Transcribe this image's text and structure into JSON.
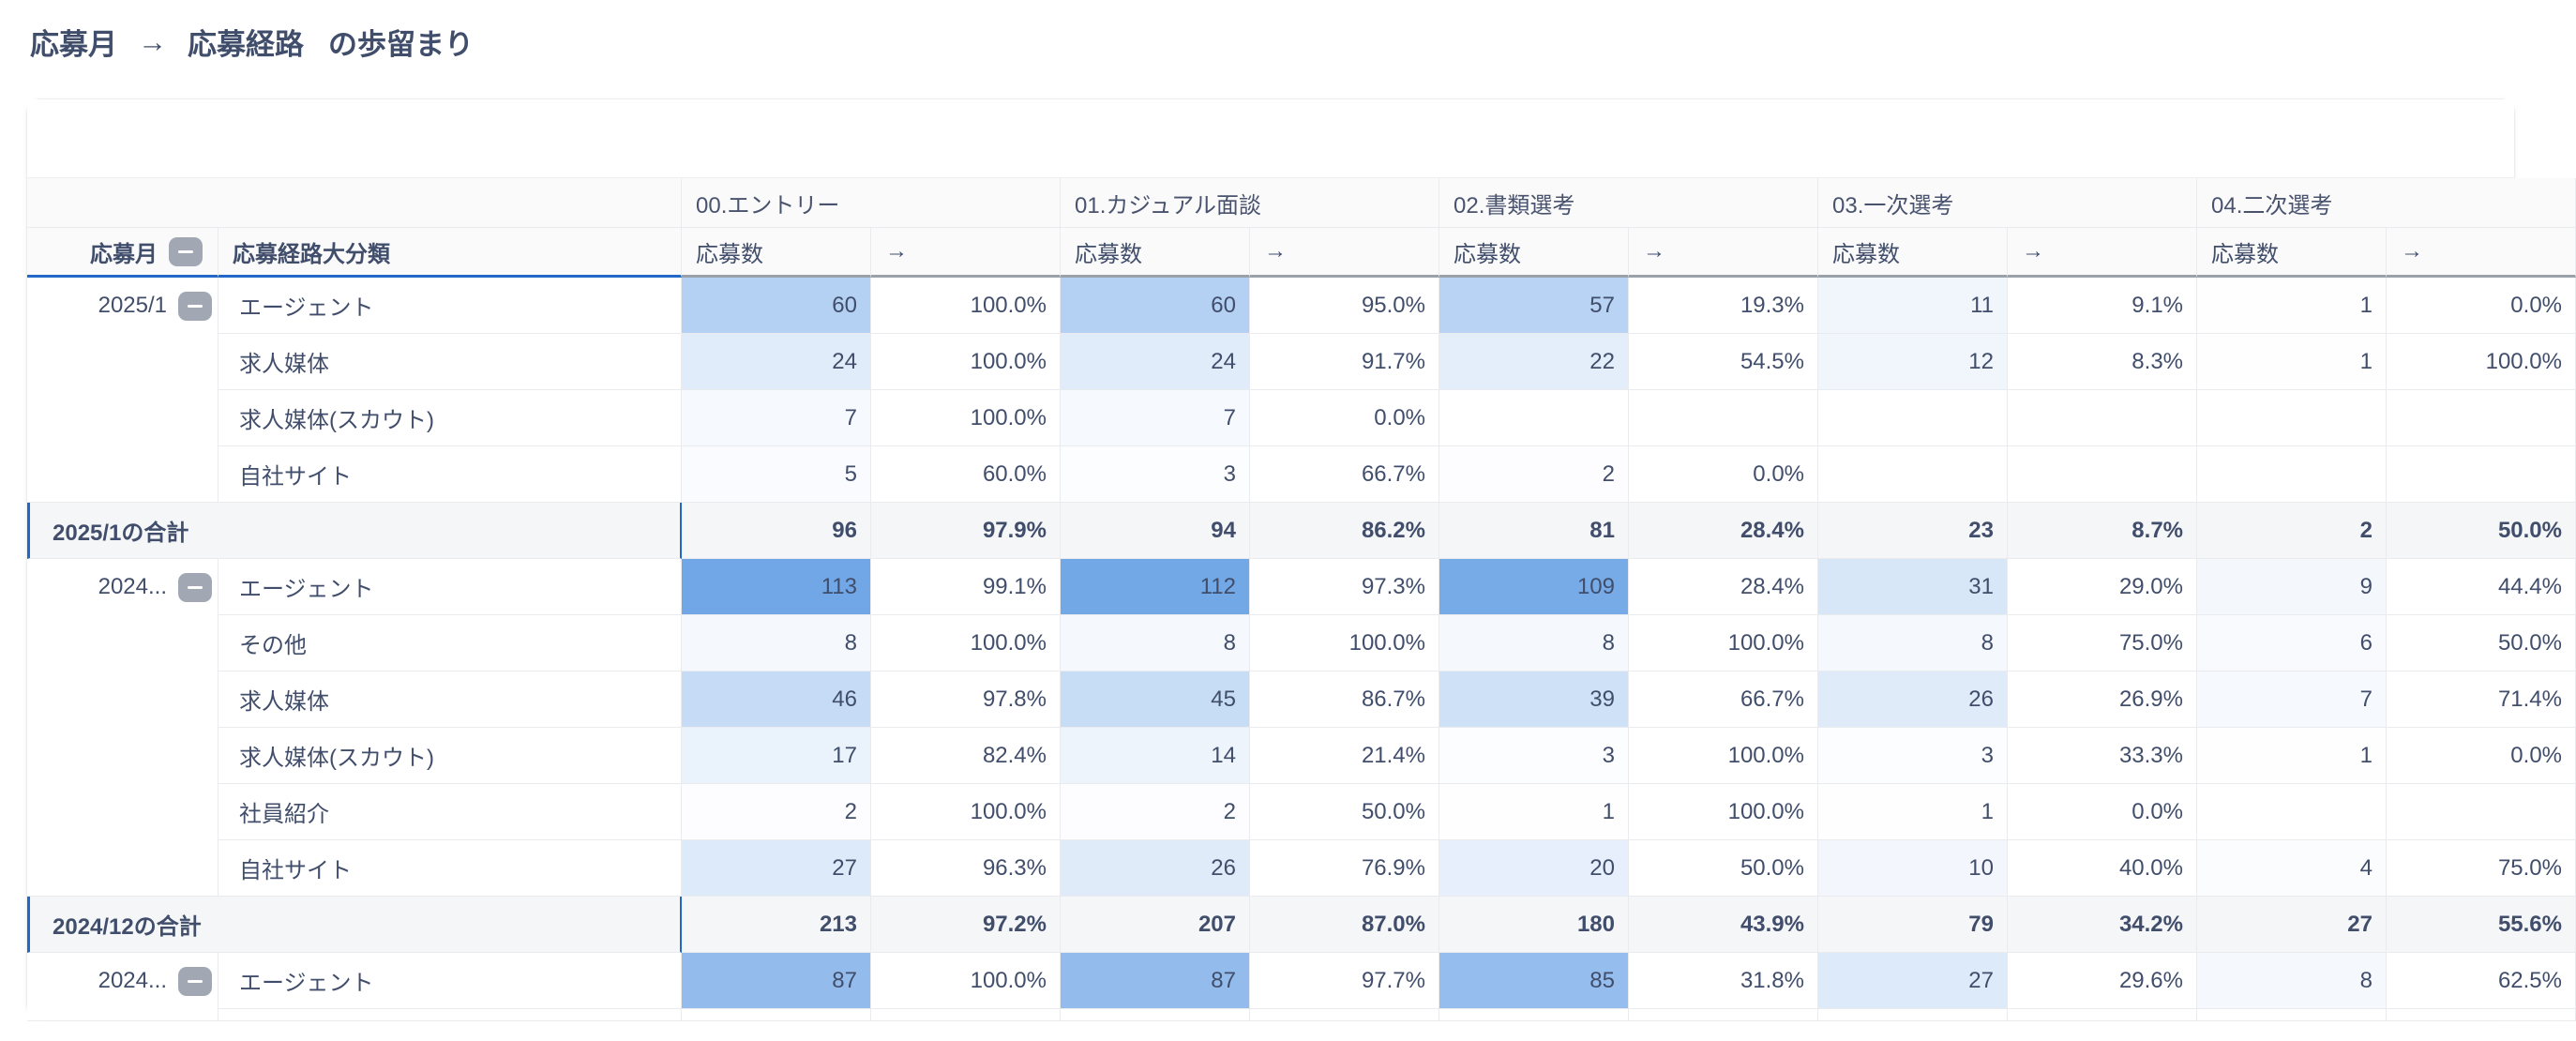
{
  "title": {
    "dim1": "応募月",
    "arrow": "→",
    "dim2": "応募経路",
    "suffix": "の歩留まり"
  },
  "colors": {
    "accent_blue": "#2268C8",
    "heat_base_blue": "#3E87DE",
    "header_underline_gray": "#9BA1A8",
    "grid_line": "#E9EBEE",
    "header_bg": "#FAFAFB",
    "subtotal_bg": "#F5F6F8",
    "text": "#414E6B",
    "collapse_button_gray": "#A1A7B3"
  },
  "table": {
    "max_count": 113,
    "month_header": "応募月",
    "channel_header": "応募経路大分類",
    "count_header": "応募数",
    "rate_header": "→",
    "stage_groups": [
      {
        "label": "00.エントリー"
      },
      {
        "label": "01.カジュアル面談"
      },
      {
        "label": "02.書類選考"
      },
      {
        "label": "03.一次選考"
      },
      {
        "label": "04.二次選考"
      }
    ],
    "groups": [
      {
        "month": "2025/1",
        "rows": [
          {
            "channel": "エージェント",
            "cells": [
              60,
              "100.0%",
              60,
              "95.0%",
              57,
              "19.3%",
              11,
              "9.1%",
              1,
              "0.0%"
            ]
          },
          {
            "channel": "求人媒体",
            "cells": [
              24,
              "100.0%",
              24,
              "91.7%",
              22,
              "54.5%",
              12,
              "8.3%",
              1,
              "100.0%"
            ]
          },
          {
            "channel": "求人媒体(スカウト)",
            "cells": [
              7,
              "100.0%",
              7,
              "0.0%",
              null,
              null,
              null,
              null,
              null,
              null
            ]
          },
          {
            "channel": "自社サイト",
            "cells": [
              5,
              "60.0%",
              3,
              "66.7%",
              2,
              "0.0%",
              null,
              null,
              null,
              null
            ]
          }
        ],
        "subtotal": {
          "label": "2025/1の合計",
          "cells": [
            96,
            "97.9%",
            94,
            "86.2%",
            81,
            "28.4%",
            23,
            "8.7%",
            2,
            "50.0%"
          ]
        }
      },
      {
        "month": "2024...",
        "rows": [
          {
            "channel": "エージェント",
            "cells": [
              113,
              "99.1%",
              112,
              "97.3%",
              109,
              "28.4%",
              31,
              "29.0%",
              9,
              "44.4%"
            ]
          },
          {
            "channel": "その他",
            "cells": [
              8,
              "100.0%",
              8,
              "100.0%",
              8,
              "100.0%",
              8,
              "75.0%",
              6,
              "50.0%"
            ]
          },
          {
            "channel": "求人媒体",
            "cells": [
              46,
              "97.8%",
              45,
              "86.7%",
              39,
              "66.7%",
              26,
              "26.9%",
              7,
              "71.4%"
            ]
          },
          {
            "channel": "求人媒体(スカウト)",
            "cells": [
              17,
              "82.4%",
              14,
              "21.4%",
              3,
              "100.0%",
              3,
              "33.3%",
              1,
              "0.0%"
            ]
          },
          {
            "channel": "社員紹介",
            "cells": [
              2,
              "100.0%",
              2,
              "50.0%",
              1,
              "100.0%",
              1,
              "0.0%",
              null,
              null
            ]
          },
          {
            "channel": "自社サイト",
            "cells": [
              27,
              "96.3%",
              26,
              "76.9%",
              20,
              "50.0%",
              10,
              "40.0%",
              4,
              "75.0%"
            ]
          }
        ],
        "subtotal": {
          "label": "2024/12の合計",
          "cells": [
            213,
            "97.2%",
            207,
            "87.0%",
            180,
            "43.9%",
            79,
            "34.2%",
            27,
            "55.6%"
          ]
        }
      },
      {
        "month": "2024...",
        "rows": [
          {
            "channel": "エージェント",
            "cells": [
              87,
              "100.0%",
              87,
              "97.7%",
              85,
              "31.8%",
              27,
              "29.6%",
              8,
              "62.5%"
            ]
          }
        ],
        "subtotal": null,
        "partial_row": true
      }
    ]
  }
}
